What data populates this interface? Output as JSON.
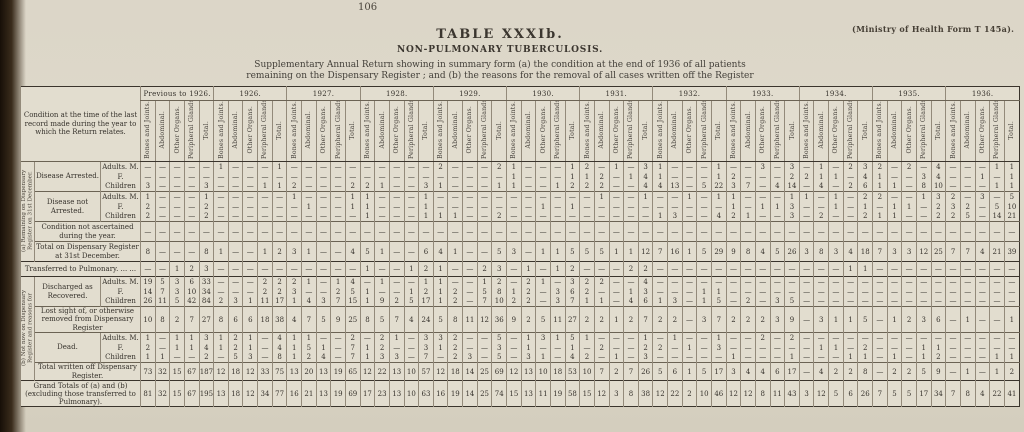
{
  "page": {
    "number": "106",
    "form_ref": "(Ministry of Health Form T 145a).",
    "title": "TABLE XXXIb.",
    "subtitle": "NON-PULMONARY TUBERCULOSIS.",
    "description": "Supplementary Annual Return showing in summary form (a) the condition at the end of 1936 of all patients remaining on the Dispensary Register ; and (b) the reasons for the removal of all cases written off the Register"
  },
  "chart_data": {
    "type": "table",
    "stub_header": "Condition at the time of the last record made during the year to which the Return relates.",
    "section_a_label": "(a) Remaining on Dispensary Register on 31st December.",
    "section_b_label": "(b) Not now on Dispensary Register and reasons for removal therefrom.",
    "year_groups": [
      "Previous to 1926.",
      "1926.",
      "1927.",
      "1928.",
      "1929.",
      "1930.",
      "1931.",
      "1932.",
      "1933.",
      "1934.",
      "1935.",
      "1936."
    ],
    "sub_columns": [
      "Bones and Joints.",
      "Abdominal.",
      "Other Organs.",
      "Peripheral Glands.",
      "Total."
    ],
    "rows": [
      {
        "side": "a",
        "group": "Disease Arrested.",
        "sub": "Adults. M.",
        "values": [
          "—",
          "—",
          "—",
          "—",
          "—",
          "1",
          "—",
          "—",
          "—",
          "1",
          "—",
          "—",
          "—",
          "—",
          "—",
          "—",
          "—",
          "—",
          "—",
          "—",
          "2",
          "—",
          "—",
          "—",
          "2",
          "1",
          "—",
          "—",
          "—",
          "1",
          "2",
          "—",
          "1",
          "—",
          "3",
          "1",
          "—",
          "—",
          "—",
          "1",
          "—",
          "—",
          "3",
          "—",
          "3",
          "—",
          "1",
          "—",
          "2",
          "3",
          "2",
          "—",
          "2",
          "—",
          "4",
          "—",
          "—",
          "—",
          "1",
          "1"
        ]
      },
      {
        "sub": "F.",
        "values": [
          "—",
          "—",
          "—",
          "—",
          "—",
          "—",
          "—",
          "—",
          "—",
          "—",
          "—",
          "—",
          "—",
          "—",
          "—",
          "—",
          "—",
          "—",
          "—",
          "—",
          "—",
          "—",
          "—",
          "—",
          "—",
          "1",
          "—",
          "—",
          "—",
          "1",
          "1",
          "2",
          "—",
          "1",
          "4",
          "1",
          "—",
          "—",
          "—",
          "1",
          "2",
          "—",
          "—",
          "—",
          "2",
          "2",
          "1",
          "1",
          "—",
          "4",
          "1",
          "—",
          "—",
          "3",
          "4",
          "—",
          "—",
          "1",
          "—",
          "1"
        ]
      },
      {
        "sub": "Children",
        "values": [
          "3",
          "—",
          "—",
          "—",
          "3",
          "—",
          "—",
          "—",
          "1",
          "1",
          "2",
          "—",
          "—",
          "—",
          "2",
          "2",
          "1",
          "—",
          "—",
          "3",
          "1",
          "—",
          "—",
          "—",
          "1",
          "1",
          "—",
          "—",
          "1",
          "2",
          "2",
          "2",
          "—",
          "—",
          "4",
          "4",
          "13",
          "—",
          "5",
          "22",
          "3",
          "7",
          "—",
          "4",
          "14",
          "—",
          "4",
          "—",
          "2",
          "6",
          "1",
          "1",
          "—",
          "8",
          "10",
          "—",
          "—",
          "—",
          "1",
          "1"
        ]
      },
      {
        "group": "Disease not Arrested.",
        "sub": "Adults. M.",
        "values": [
          "1",
          "—",
          "—",
          "—",
          "1",
          "—",
          "—",
          "—",
          "—",
          "—",
          "1",
          "—",
          "—",
          "—",
          "1",
          "1",
          "—",
          "—",
          "—",
          "1",
          "—",
          "—",
          "—",
          "—",
          "—",
          "—",
          "—",
          "—",
          "—",
          "—",
          "—",
          "1",
          "—",
          "—",
          "1",
          "—",
          "—",
          "1",
          "—",
          "1",
          "1",
          "—",
          "—",
          "—",
          "1",
          "1",
          "—",
          "1",
          "—",
          "2",
          "2",
          "—",
          "—",
          "1",
          "3",
          "2",
          "—",
          "3",
          "—",
          "5"
        ]
      },
      {
        "sub": "F.",
        "values": [
          "2",
          "—",
          "—",
          "—",
          "2",
          "—",
          "—",
          "—",
          "—",
          "—",
          "—",
          "1",
          "—",
          "—",
          "1",
          "1",
          "—",
          "—",
          "—",
          "1",
          "—",
          "—",
          "—",
          "—",
          "—",
          "—",
          "—",
          "1",
          "—",
          "1",
          "—",
          "—",
          "—",
          "—",
          "—",
          "—",
          "—",
          "—",
          "—",
          "—",
          "1",
          "—",
          "1",
          "1",
          "3",
          "—",
          "—",
          "1",
          "—",
          "1",
          "—",
          "1",
          "1",
          "—",
          "2",
          "3",
          "2",
          "—",
          "5",
          "10"
        ]
      },
      {
        "sub": "Children",
        "values": [
          "2",
          "—",
          "—",
          "—",
          "2",
          "—",
          "—",
          "—",
          "—",
          "—",
          "—",
          "—",
          "—",
          "—",
          "—",
          "1",
          "—",
          "—",
          "—",
          "1",
          "1",
          "1",
          "—",
          "—",
          "2",
          "—",
          "—",
          "—",
          "—",
          "—",
          "—",
          "—",
          "—",
          "—",
          "—",
          "1",
          "3",
          "—",
          "—",
          "4",
          "2",
          "1",
          "—",
          "—",
          "3",
          "—",
          "2",
          "—",
          "—",
          "2",
          "1",
          "1",
          "—",
          "—",
          "2",
          "2",
          "5",
          "—",
          "14",
          "21"
        ]
      },
      {
        "label": "Condition not ascertained during the year.",
        "values": [
          "—",
          "—",
          "—",
          "—",
          "—",
          "—",
          "—",
          "—",
          "—",
          "—",
          "—",
          "—",
          "—",
          "—",
          "—",
          "—",
          "—",
          "—",
          "—",
          "—",
          "—",
          "—",
          "—",
          "—",
          "—",
          "—",
          "—",
          "—",
          "—",
          "—",
          "—",
          "—",
          "—",
          "—",
          "—",
          "—",
          "—",
          "—",
          "—",
          "—",
          "—",
          "—",
          "—",
          "—",
          "—",
          "—",
          "—",
          "—",
          "—",
          "—",
          "—",
          "—",
          "—",
          "—",
          "—",
          "—",
          "—",
          "—",
          "—",
          "—"
        ]
      },
      {
        "label": "Total on Dispensary Register at 31st December.",
        "values": [
          "8",
          "—",
          "—",
          "—",
          "8",
          "1",
          "—",
          "—",
          "1",
          "2",
          "3",
          "1",
          "—",
          "—",
          "4",
          "5",
          "1",
          "—",
          "—",
          "6",
          "4",
          "1",
          "—",
          "—",
          "5",
          "3",
          "—",
          "1",
          "1",
          "5",
          "5",
          "5",
          "1",
          "1",
          "12",
          "7",
          "16",
          "1",
          "5",
          "29",
          "9",
          "8",
          "4",
          "5",
          "26",
          "3",
          "8",
          "3",
          "4",
          "18",
          "7",
          "3",
          "3",
          "12",
          "25",
          "7",
          "7",
          "4",
          "21",
          "39"
        ]
      },
      {
        "label": "Transferred to Pulmonary. ...      ...",
        "fullwidth": true,
        "values": [
          "—",
          "—",
          "1",
          "2",
          "3",
          "—",
          "—",
          "—",
          "—",
          "—",
          "—",
          "—",
          "—",
          "—",
          "—",
          "1",
          "—",
          "—",
          "1",
          "2",
          "1",
          "—",
          "—",
          "2",
          "3",
          "—",
          "1",
          "—",
          "1",
          "2",
          "—",
          "—",
          "—",
          "2",
          "2",
          "—",
          "—",
          "—",
          "—",
          "—",
          "—",
          "—",
          "—",
          "—",
          "—",
          "—",
          "—",
          "—",
          "1",
          "1",
          "—",
          "—",
          "—",
          "—",
          "—",
          "—",
          "—",
          "—",
          "—",
          "—"
        ]
      },
      {
        "side": "b",
        "group": "Discharged as Recovered.",
        "sub": "Adults. M.",
        "values": [
          "19",
          "5",
          "3",
          "6",
          "33",
          "—",
          "—",
          "—",
          "2",
          "2",
          "2",
          "1",
          "—",
          "1",
          "4",
          "—",
          "1",
          "—",
          "—",
          "1",
          "1",
          "—",
          "—",
          "1",
          "2",
          "—",
          "2",
          "1",
          "—",
          "3",
          "2",
          "2",
          "—",
          "—",
          "4",
          "—",
          "—",
          "—",
          "—",
          "—",
          "—",
          "—",
          "—",
          "—",
          "—",
          "—",
          "—",
          "—",
          "—",
          "—",
          "—",
          "—",
          "—",
          "—",
          "—",
          "—",
          "—",
          "—",
          "—",
          "—"
        ]
      },
      {
        "sub": "F.",
        "values": [
          "14",
          "7",
          "3",
          "10",
          "34",
          "—",
          "—",
          "—",
          "2",
          "2",
          "3",
          "—",
          "—",
          "2",
          "5",
          "1",
          "—",
          "—",
          "1",
          "2",
          "1",
          "2",
          "—",
          "5",
          "8",
          "1",
          "2",
          "—",
          "3",
          "6",
          "2",
          "—",
          "—",
          "1",
          "3",
          "—",
          "—",
          "—",
          "1",
          "1",
          "—",
          "—",
          "—",
          "—",
          "—",
          "—",
          "—",
          "—",
          "—",
          "—",
          "—",
          "—",
          "—",
          "—",
          "—",
          "—",
          "—",
          "—",
          "—",
          "—"
        ]
      },
      {
        "sub": "Children",
        "values": [
          "26",
          "11",
          "5",
          "42",
          "84",
          "2",
          "3",
          "1",
          "11",
          "17",
          "1",
          "4",
          "3",
          "7",
          "15",
          "1",
          "9",
          "2",
          "5",
          "17",
          "1",
          "2",
          "—",
          "7",
          "10",
          "2",
          "2",
          "—",
          "3",
          "7",
          "1",
          "1",
          "—",
          "4",
          "6",
          "1",
          "3",
          "—",
          "1",
          "5",
          "—",
          "2",
          "—",
          "3",
          "5",
          "—",
          "—",
          "—",
          "—",
          "—",
          "—",
          "—",
          "—",
          "—",
          "—",
          "—",
          "—",
          "—",
          "—",
          "—"
        ]
      },
      {
        "label": "Lost sight of, or otherwise removed from Dispensary Register",
        "values": [
          "10",
          "8",
          "2",
          "7",
          "27",
          "8",
          "6",
          "6",
          "18",
          "38",
          "4",
          "7",
          "5",
          "9",
          "25",
          "8",
          "5",
          "7",
          "4",
          "24",
          "5",
          "8",
          "11",
          "12",
          "36",
          "9",
          "2",
          "5",
          "11",
          "27",
          "2",
          "2",
          "1",
          "2",
          "7",
          "2",
          "2",
          "—",
          "3",
          "7",
          "2",
          "2",
          "2",
          "3",
          "9",
          "—",
          "3",
          "1",
          "1",
          "5",
          "—",
          "1",
          "2",
          "3",
          "6",
          "—",
          "1",
          "—",
          "—",
          "1"
        ]
      },
      {
        "group": "Dead.",
        "sub": "Adults. M.",
        "values": [
          "1",
          "—",
          "1",
          "1",
          "3",
          "1",
          "2",
          "1",
          "—",
          "4",
          "1",
          "1",
          "—",
          "—",
          "2",
          "—",
          "2",
          "1",
          "—",
          "3",
          "3",
          "2",
          "—",
          "—",
          "5",
          "—",
          "1",
          "3",
          "1",
          "5",
          "1",
          "—",
          "—",
          "—",
          "1",
          "—",
          "1",
          "—",
          "—",
          "1",
          "—",
          "—",
          "2",
          "—",
          "2",
          "—",
          "—",
          "—",
          "—",
          "—",
          "—",
          "—",
          "—",
          "—",
          "—",
          "—",
          "—",
          "—",
          "—",
          "—"
        ]
      },
      {
        "sub": "F.",
        "values": [
          "2",
          "—",
          "1",
          "1",
          "4",
          "1",
          "2",
          "1",
          "—",
          "4",
          "1",
          "5",
          "1",
          "—",
          "7",
          "1",
          "2",
          "—",
          "—",
          "3",
          "1",
          "2",
          "—",
          "—",
          "3",
          "—",
          "1",
          "—",
          "—",
          "1",
          "—",
          "2",
          "—",
          "—",
          "2",
          "2",
          "—",
          "1",
          "—",
          "3",
          "—",
          "—",
          "—",
          "—",
          "—",
          "—",
          "1",
          "1",
          "—",
          "2",
          "—",
          "—",
          "—",
          "1",
          "1",
          "—",
          "—",
          "—",
          "—",
          "—"
        ]
      },
      {
        "sub": "Children",
        "values": [
          "1",
          "1",
          "—",
          "—",
          "2",
          "—",
          "5",
          "3",
          "—",
          "8",
          "1",
          "2",
          "4",
          "—",
          "7",
          "1",
          "3",
          "3",
          "—",
          "7",
          "—",
          "2",
          "3",
          "—",
          "5",
          "—",
          "3",
          "1",
          "—",
          "4",
          "2",
          "—",
          "1",
          "—",
          "3",
          "—",
          "—",
          "—",
          "—",
          "—",
          "1",
          "—",
          "—",
          "—",
          "1",
          "—",
          "—",
          "—",
          "1",
          "1",
          "—",
          "1",
          "—",
          "1",
          "2",
          "—",
          "—",
          "—",
          "1",
          "1"
        ]
      },
      {
        "label": "Total written off Dispensary Register.",
        "values": [
          "73",
          "32",
          "15",
          "67",
          "187",
          "12",
          "18",
          "12",
          "33",
          "75",
          "13",
          "20",
          "13",
          "19",
          "65",
          "12",
          "22",
          "13",
          "10",
          "57",
          "12",
          "18",
          "14",
          "25",
          "69",
          "12",
          "13",
          "10",
          "18",
          "53",
          "10",
          "7",
          "2",
          "7",
          "26",
          "5",
          "6",
          "1",
          "5",
          "17",
          "3",
          "4",
          "4",
          "6",
          "17",
          "—",
          "4",
          "2",
          "2",
          "8",
          "—",
          "2",
          "2",
          "5",
          "9",
          "—",
          "1",
          "—",
          "1",
          "2"
        ]
      },
      {
        "label": "Grand Totals of (a) and (b) (excluding those transferred to Pulmonary).",
        "fullwidth": true,
        "grand": true,
        "values": [
          "81",
          "32",
          "15",
          "67",
          "195",
          "13",
          "18",
          "12",
          "34",
          "77",
          "16",
          "21",
          "13",
          "19",
          "69",
          "17",
          "23",
          "13",
          "10",
          "63",
          "16",
          "19",
          "14",
          "25",
          "74",
          "15",
          "13",
          "11",
          "19",
          "58",
          "15",
          "12",
          "3",
          "8",
          "38",
          "12",
          "22",
          "2",
          "10",
          "46",
          "12",
          "12",
          "8",
          "11",
          "43",
          "3",
          "12",
          "5",
          "6",
          "26",
          "7",
          "5",
          "5",
          "17",
          "34",
          "7",
          "8",
          "4",
          "22",
          "41"
        ]
      }
    ]
  }
}
